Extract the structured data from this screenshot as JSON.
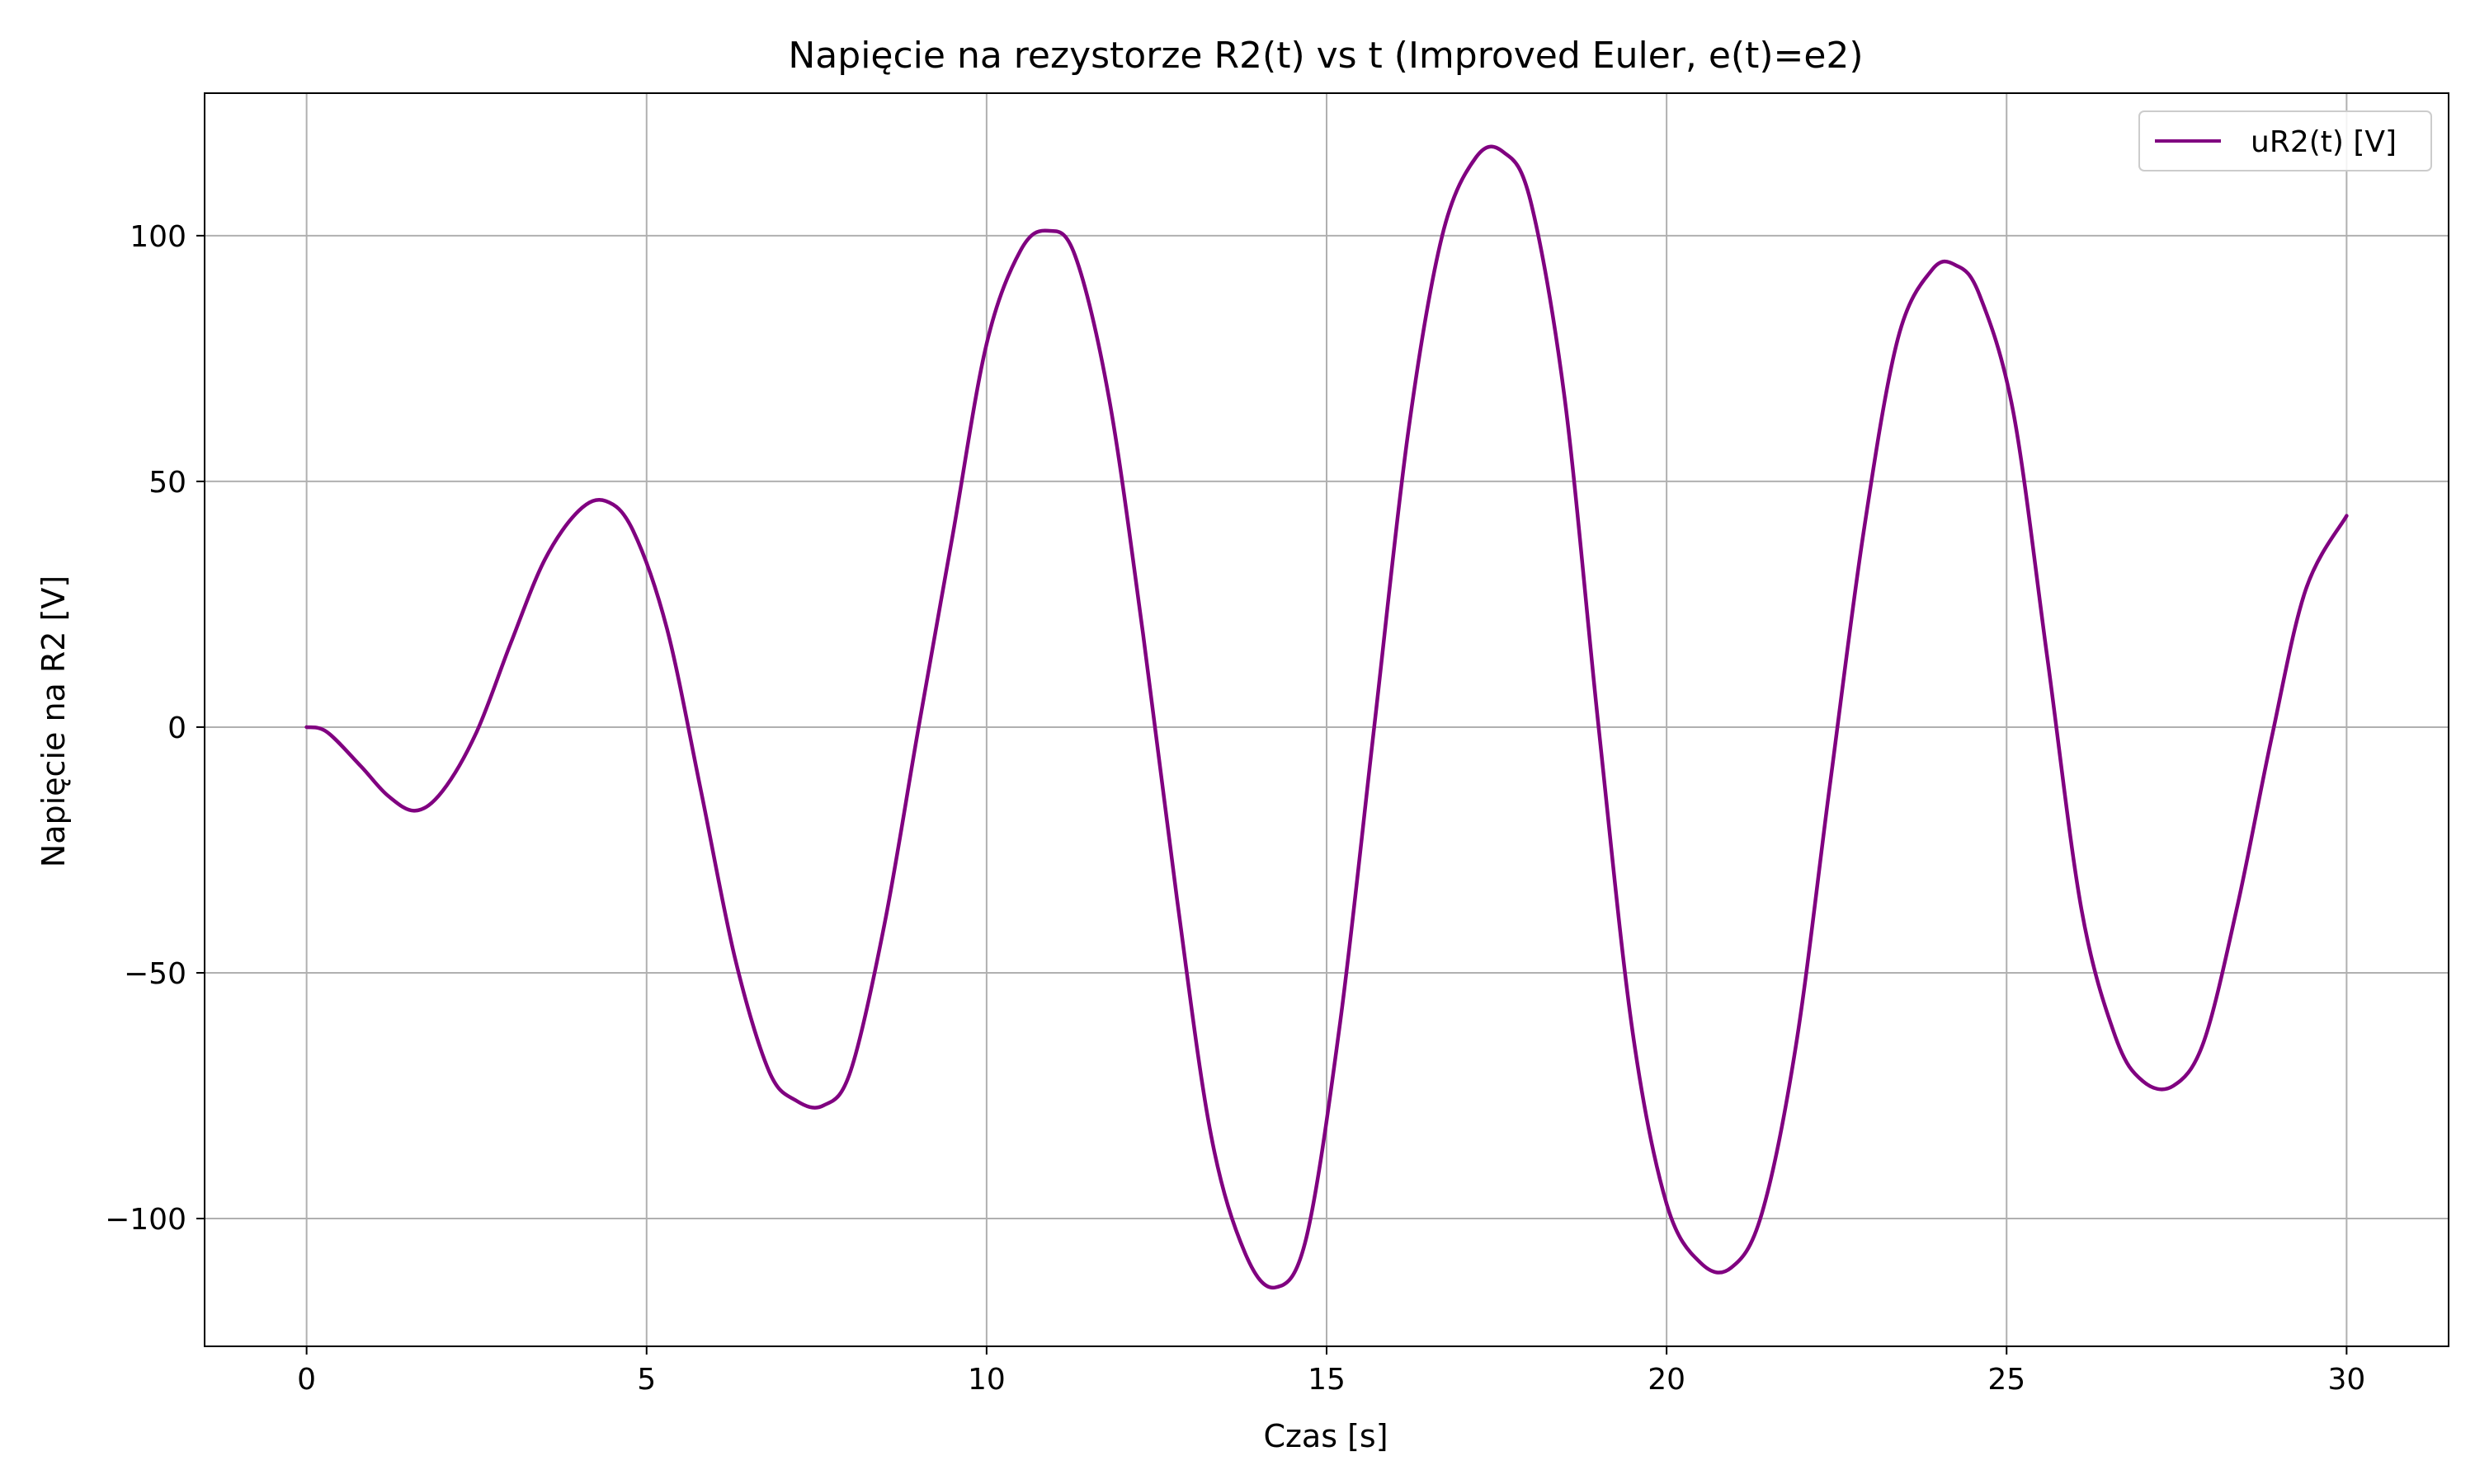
{
  "chart_data": {
    "type": "line",
    "title": "Napięcie na rezystorze R2(t) vs t (Improved Euler, e(t)=e2)",
    "xlabel": "Czas [s]",
    "ylabel": "Napięcie na R2 [V]",
    "xlim": [
      -1.5,
      31.5
    ],
    "ylim": [
      -126,
      129
    ],
    "xticks": [
      0,
      5,
      10,
      15,
      20,
      25,
      30
    ],
    "yticks": [
      -100,
      -50,
      0,
      50,
      100
    ],
    "xtick_labels": [
      "0",
      "5",
      "10",
      "15",
      "20",
      "25",
      "30"
    ],
    "ytick_labels": [
      "−100",
      "−50",
      "0",
      "50",
      "100"
    ],
    "grid": true,
    "legend_position": "top-right",
    "series": [
      {
        "name": "uR2(t) [V]",
        "color": "#800080",
        "x": [
          0,
          0.3,
          0.8,
          1.2,
          1.6,
          2.0,
          2.5,
          3.0,
          3.5,
          4.0,
          4.4,
          4.8,
          5.3,
          5.8,
          6.3,
          6.8,
          7.2,
          7.6,
          8.0,
          8.5,
          9.0,
          9.5,
          10.0,
          10.5,
          10.9,
          11.3,
          11.8,
          12.3,
          12.8,
          13.3,
          13.8,
          14.25,
          14.7,
          15.2,
          15.7,
          16.2,
          16.7,
          17.2,
          17.6,
          18.0,
          18.5,
          19.0,
          19.5,
          20.0,
          20.5,
          20.95,
          21.4,
          21.9,
          22.4,
          22.9,
          23.4,
          23.9,
          24.25,
          24.6,
          25.1,
          25.6,
          26.1,
          26.6,
          27.0,
          27.45,
          27.9,
          28.4,
          28.9,
          29.4,
          30.0
        ],
        "values": [
          0,
          -1,
          -8,
          -14,
          -17,
          -13,
          -1,
          17,
          34,
          44,
          46,
          40,
          20,
          -13,
          -47,
          -70,
          -76,
          -77,
          -70,
          -40,
          0,
          39,
          78,
          97,
          101,
          96,
          67,
          19,
          -35,
          -83,
          -107,
          -114,
          -104,
          -60,
          0,
          60,
          100,
          116,
          117,
          107,
          67,
          0,
          -62,
          -97,
          -109,
          -110,
          -99,
          -65,
          -12,
          40,
          79,
          93,
          94,
          88,
          64,
          14,
          -37,
          -63,
          -72,
          -73,
          -64,
          -36,
          -2,
          28,
          43
        ]
      }
    ]
  }
}
